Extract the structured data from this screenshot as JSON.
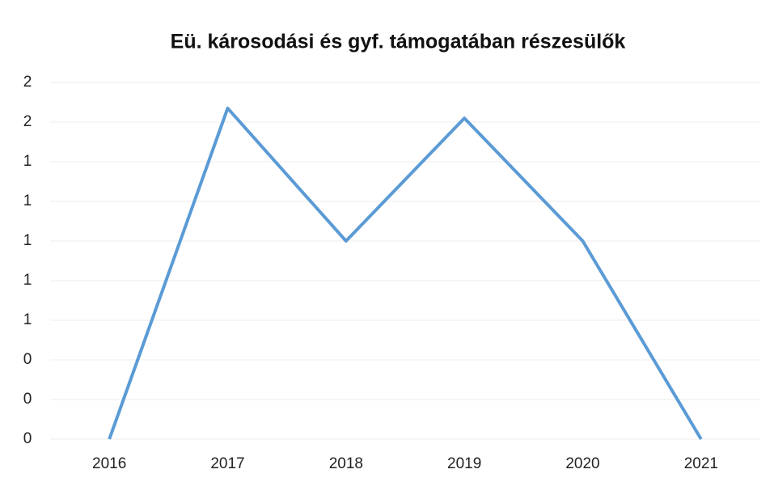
{
  "chart_data": {
    "type": "line",
    "title": "Eü. károsodási és gyf. támogatában részesülők",
    "categories": [
      "2016",
      "2017",
      "2018",
      "2019",
      "2020",
      "2021"
    ],
    "series": [
      {
        "name": "Részesülők",
        "color": "#5b9bd5",
        "values": [
          0,
          1.67,
          1,
          1.62,
          1,
          0
        ]
      }
    ],
    "ylim": [
      0,
      1.8
    ],
    "yticks": [
      0,
      {
        "value": 0.2,
        "label": "0"
      },
      {
        "value": 0.4,
        "label": "0"
      },
      {
        "value": 0.6,
        "label": "1"
      },
      {
        "value": 0.8,
        "label": "1"
      },
      1,
      {
        "value": 1.2,
        "label": "1"
      },
      {
        "value": 1.4,
        "label": "1"
      },
      {
        "value": 1.6,
        "label": "2"
      },
      {
        "value": 1.8,
        "label": "2"
      }
    ],
    "grid": true,
    "legend": false
  }
}
